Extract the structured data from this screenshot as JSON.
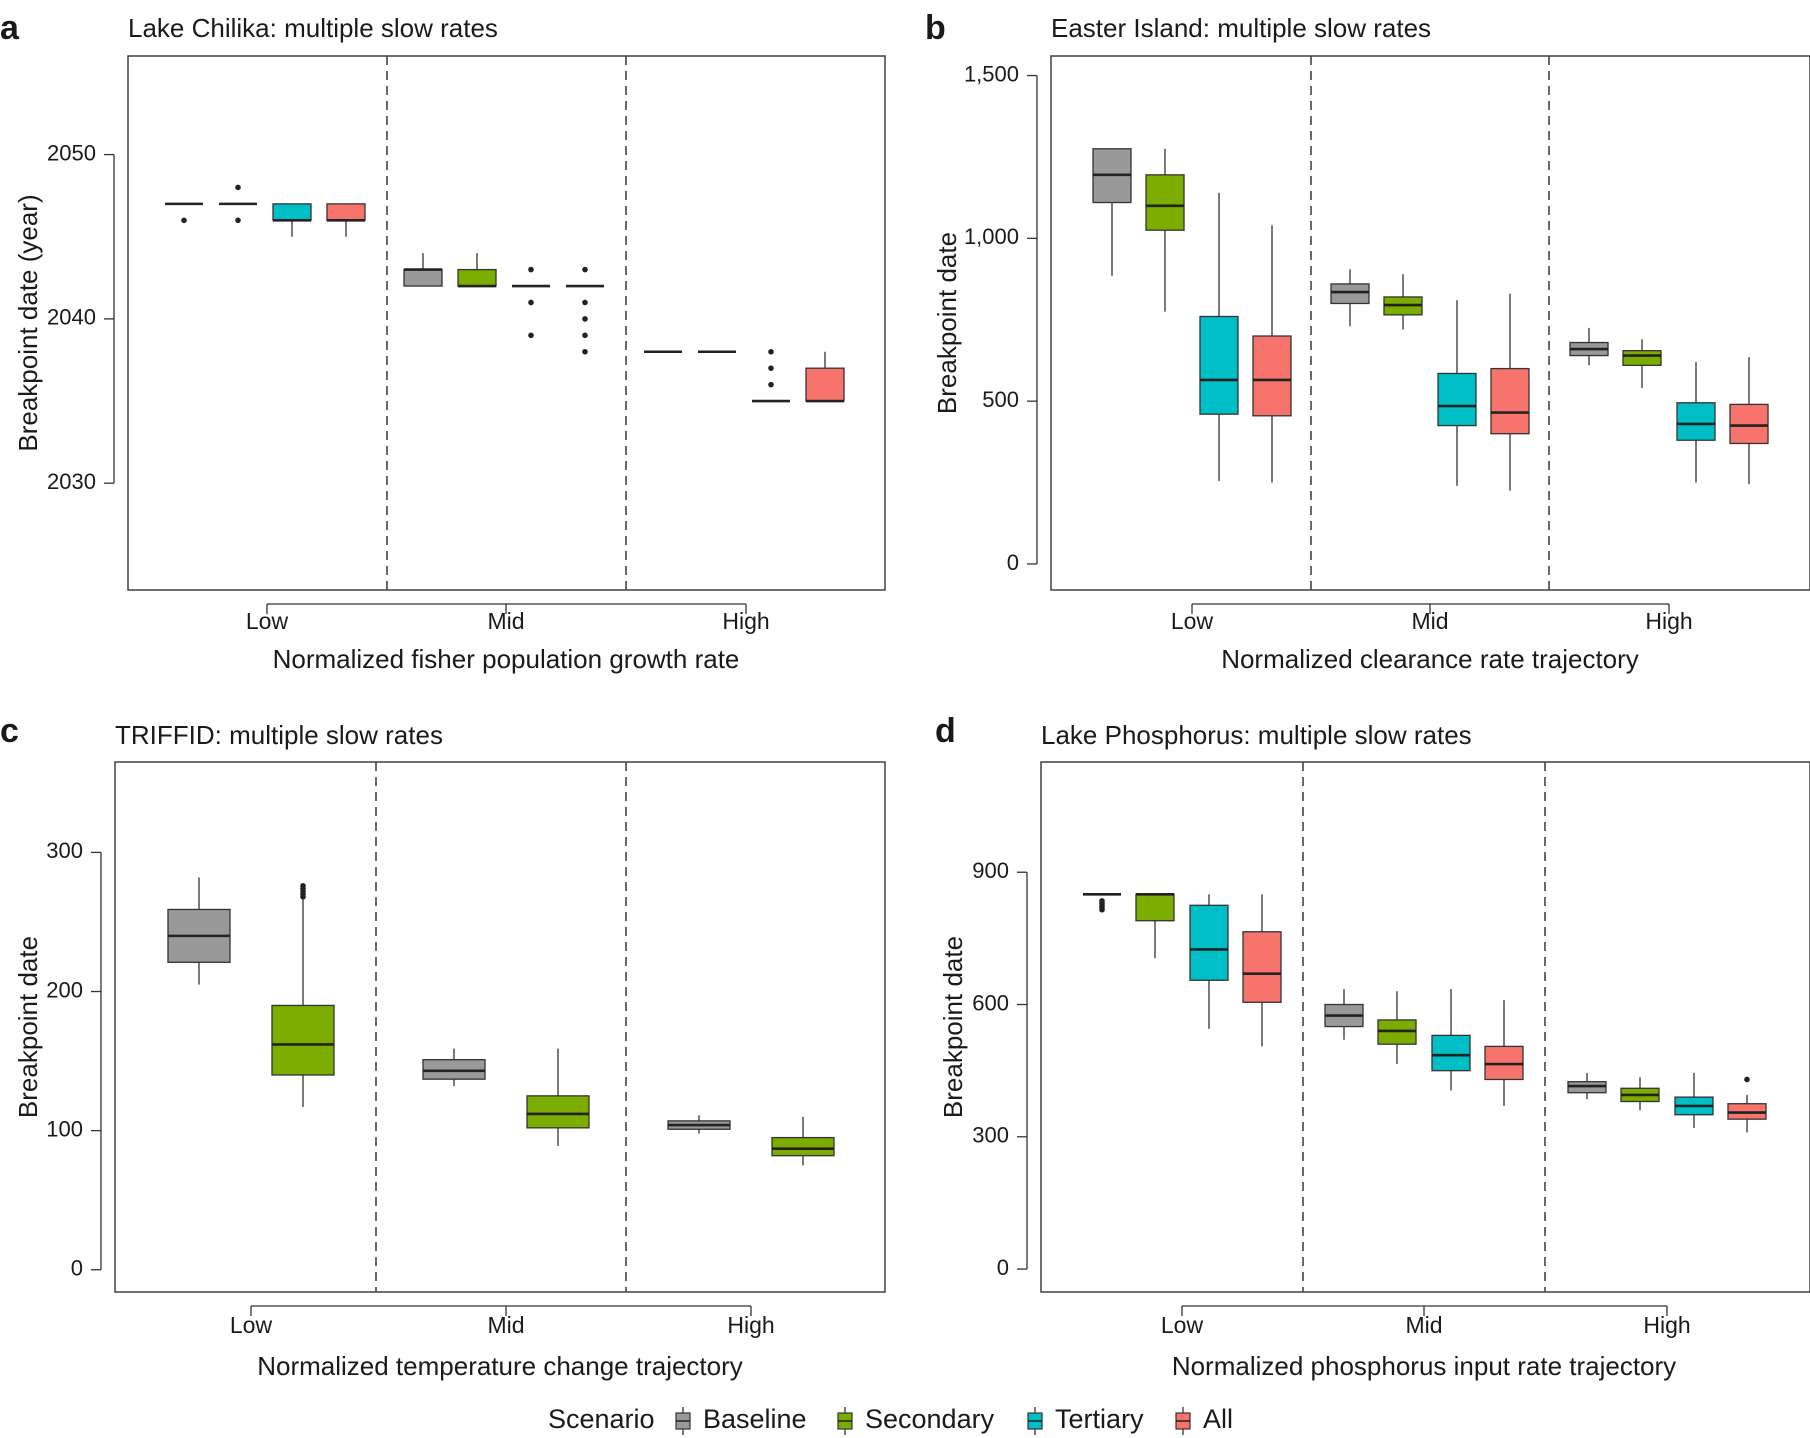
{
  "legend": {
    "title": "Scenario",
    "entries": [
      {
        "name": "Baseline",
        "color": "#999999"
      },
      {
        "name": "Secondary",
        "color": "#7aad00"
      },
      {
        "name": "Tertiary",
        "color": "#00bec5"
      },
      {
        "name": "All",
        "color": "#f7746d"
      }
    ]
  },
  "chart_data": [
    {
      "type": "box",
      "letter": "a",
      "title": "Lake Chilika: multiple slow rates",
      "xlabel": "Normalized fisher population growth rate",
      "ylabel": "Breakpoint date (year)",
      "categories": [
        "Low",
        "Mid",
        "High"
      ],
      "ylim": [
        2023.5,
        2056
      ],
      "yticks": [
        2030,
        2040,
        2050
      ],
      "yticklabels": [
        "2030",
        "2040",
        "2050"
      ],
      "series": [
        "Baseline",
        "Secondary",
        "Tertiary",
        "All"
      ],
      "boxes": [
        [
          {
            "q1": 2047,
            "med": 2047,
            "q3": 2047,
            "lo": 2047,
            "hi": 2047,
            "out": [
              2046
            ]
          },
          {
            "q1": 2047,
            "med": 2047,
            "q3": 2047,
            "lo": 2047,
            "hi": 2047,
            "out": [
              2046,
              2048
            ]
          },
          {
            "q1": 2046,
            "med": 2046,
            "q3": 2047,
            "lo": 2045,
            "hi": 2047,
            "out": []
          },
          {
            "q1": 2046,
            "med": 2046,
            "q3": 2047,
            "lo": 2045,
            "hi": 2047,
            "out": []
          }
        ],
        [
          {
            "q1": 2042,
            "med": 2043,
            "q3": 2043,
            "lo": 2042,
            "hi": 2044,
            "out": []
          },
          {
            "q1": 2042,
            "med": 2042,
            "q3": 2043,
            "lo": 2042,
            "hi": 2044,
            "out": []
          },
          {
            "q1": 2042,
            "med": 2042,
            "q3": 2042,
            "lo": 2042,
            "hi": 2042,
            "out": [
              2039,
              2041,
              2043
            ]
          },
          {
            "q1": 2042,
            "med": 2042,
            "q3": 2042,
            "lo": 2042,
            "hi": 2042,
            "out": [
              2038,
              2039,
              2040,
              2041,
              2043
            ]
          }
        ],
        [
          {
            "q1": 2038,
            "med": 2038,
            "q3": 2038,
            "lo": 2038,
            "hi": 2038,
            "out": []
          },
          {
            "q1": 2038,
            "med": 2038,
            "q3": 2038,
            "lo": 2038,
            "hi": 2038,
            "out": []
          },
          {
            "q1": 2035,
            "med": 2035,
            "q3": 2035,
            "lo": 2035,
            "hi": 2035,
            "out": [
              2036,
              2037,
              2038
            ]
          },
          {
            "q1": 2035,
            "med": 2035,
            "q3": 2037,
            "lo": 2035,
            "hi": 2038,
            "out": []
          }
        ]
      ]
    },
    {
      "type": "box",
      "letter": "b",
      "title": "Easter Island: multiple slow rates",
      "xlabel": "Normalized clearance rate trajectory",
      "ylabel": "Breakpoint date",
      "categories": [
        "Low",
        "Mid",
        "High"
      ],
      "ylim": [
        -80,
        1560
      ],
      "yticks": [
        0,
        500,
        1000,
        1500
      ],
      "yticklabels": [
        "0",
        "500",
        "1,000",
        "1,500"
      ],
      "series": [
        "Baseline",
        "Secondary",
        "Tertiary",
        "All"
      ],
      "boxes": [
        [
          {
            "q1": 1110,
            "med": 1195,
            "q3": 1275,
            "lo": 885,
            "hi": 1275,
            "out": []
          },
          {
            "q1": 1025,
            "med": 1100,
            "q3": 1195,
            "lo": 775,
            "hi": 1275,
            "out": []
          },
          {
            "q1": 460,
            "med": 565,
            "q3": 760,
            "lo": 255,
            "hi": 1140,
            "out": []
          },
          {
            "q1": 455,
            "med": 565,
            "q3": 700,
            "lo": 250,
            "hi": 1040,
            "out": []
          }
        ],
        [
          {
            "q1": 800,
            "med": 835,
            "q3": 860,
            "lo": 730,
            "hi": 905,
            "out": []
          },
          {
            "q1": 765,
            "med": 795,
            "q3": 820,
            "lo": 720,
            "hi": 890,
            "out": []
          },
          {
            "q1": 425,
            "med": 485,
            "q3": 585,
            "lo": 240,
            "hi": 810,
            "out": []
          },
          {
            "q1": 400,
            "med": 465,
            "q3": 600,
            "lo": 225,
            "hi": 830,
            "out": []
          }
        ],
        [
          {
            "q1": 640,
            "med": 660,
            "q3": 680,
            "lo": 610,
            "hi": 725,
            "out": []
          },
          {
            "q1": 610,
            "med": 640,
            "q3": 655,
            "lo": 540,
            "hi": 690,
            "out": []
          },
          {
            "q1": 380,
            "med": 430,
            "q3": 495,
            "lo": 250,
            "hi": 620,
            "out": []
          },
          {
            "q1": 370,
            "med": 425,
            "q3": 490,
            "lo": 245,
            "hi": 635,
            "out": []
          }
        ]
      ]
    },
    {
      "type": "box",
      "letter": "c",
      "title": "TRIFFID: multiple slow rates",
      "xlabel": "Normalized temperature change trajectory",
      "ylabel": "Breakpoint date",
      "categories": [
        "Low",
        "Mid",
        "High"
      ],
      "ylim": [
        -16,
        365
      ],
      "yticks": [
        0,
        100,
        200,
        300
      ],
      "yticklabels": [
        "0",
        "100",
        "200",
        "300"
      ],
      "series": [
        "Baseline",
        "Secondary"
      ],
      "boxes": [
        [
          {
            "q1": 221,
            "med": 240,
            "q3": 259,
            "lo": 205,
            "hi": 282,
            "out": []
          },
          {
            "q1": 140,
            "med": 162,
            "q3": 190,
            "lo": 117,
            "hi": 266,
            "out": [
              268,
              270,
              272,
              274,
              276
            ]
          }
        ],
        [
          {
            "q1": 137,
            "med": 143,
            "q3": 151,
            "lo": 132,
            "hi": 159,
            "out": []
          },
          {
            "q1": 102,
            "med": 112,
            "q3": 125,
            "lo": 89,
            "hi": 159,
            "out": []
          }
        ],
        [
          {
            "q1": 101,
            "med": 104,
            "q3": 107,
            "lo": 98,
            "hi": 111,
            "out": []
          },
          {
            "q1": 82,
            "med": 87,
            "q3": 95,
            "lo": 75,
            "hi": 110,
            "out": []
          }
        ]
      ]
    },
    {
      "type": "box",
      "letter": "d",
      "title": "Lake Phosphorus: multiple slow rates",
      "xlabel": "Normalized phosphorus input rate trajectory",
      "ylabel": "Breakpoint date",
      "categories": [
        "Low",
        "Mid",
        "High"
      ],
      "ylim": [
        -52,
        1150
      ],
      "yticks": [
        0,
        300,
        600,
        900
      ],
      "yticklabels": [
        "0",
        "300",
        "600",
        "900"
      ],
      "series": [
        "Baseline",
        "Secondary",
        "Tertiary",
        "All"
      ],
      "boxes": [
        [
          {
            "q1": 850,
            "med": 850,
            "q3": 850,
            "lo": 850,
            "hi": 850,
            "out": [
              815,
              820,
              825,
              830,
              835
            ]
          },
          {
            "q1": 790,
            "med": 850,
            "q3": 850,
            "lo": 705,
            "hi": 850,
            "out": []
          },
          {
            "q1": 655,
            "med": 725,
            "q3": 825,
            "lo": 545,
            "hi": 850,
            "out": []
          },
          {
            "q1": 605,
            "med": 670,
            "q3": 765,
            "lo": 505,
            "hi": 850,
            "out": []
          }
        ],
        [
          {
            "q1": 550,
            "med": 575,
            "q3": 600,
            "lo": 520,
            "hi": 635,
            "out": []
          },
          {
            "q1": 510,
            "med": 540,
            "q3": 565,
            "lo": 465,
            "hi": 630,
            "out": []
          },
          {
            "q1": 450,
            "med": 485,
            "q3": 530,
            "lo": 405,
            "hi": 635,
            "out": []
          },
          {
            "q1": 430,
            "med": 465,
            "q3": 505,
            "lo": 370,
            "hi": 610,
            "out": []
          }
        ],
        [
          {
            "q1": 400,
            "med": 415,
            "q3": 425,
            "lo": 385,
            "hi": 445,
            "out": []
          },
          {
            "q1": 380,
            "med": 395,
            "q3": 410,
            "lo": 360,
            "hi": 435,
            "out": []
          },
          {
            "q1": 350,
            "med": 370,
            "q3": 390,
            "lo": 320,
            "hi": 445,
            "out": []
          },
          {
            "q1": 340,
            "med": 355,
            "q3": 375,
            "lo": 310,
            "hi": 395,
            "out": [
              430
            ]
          }
        ]
      ]
    }
  ]
}
